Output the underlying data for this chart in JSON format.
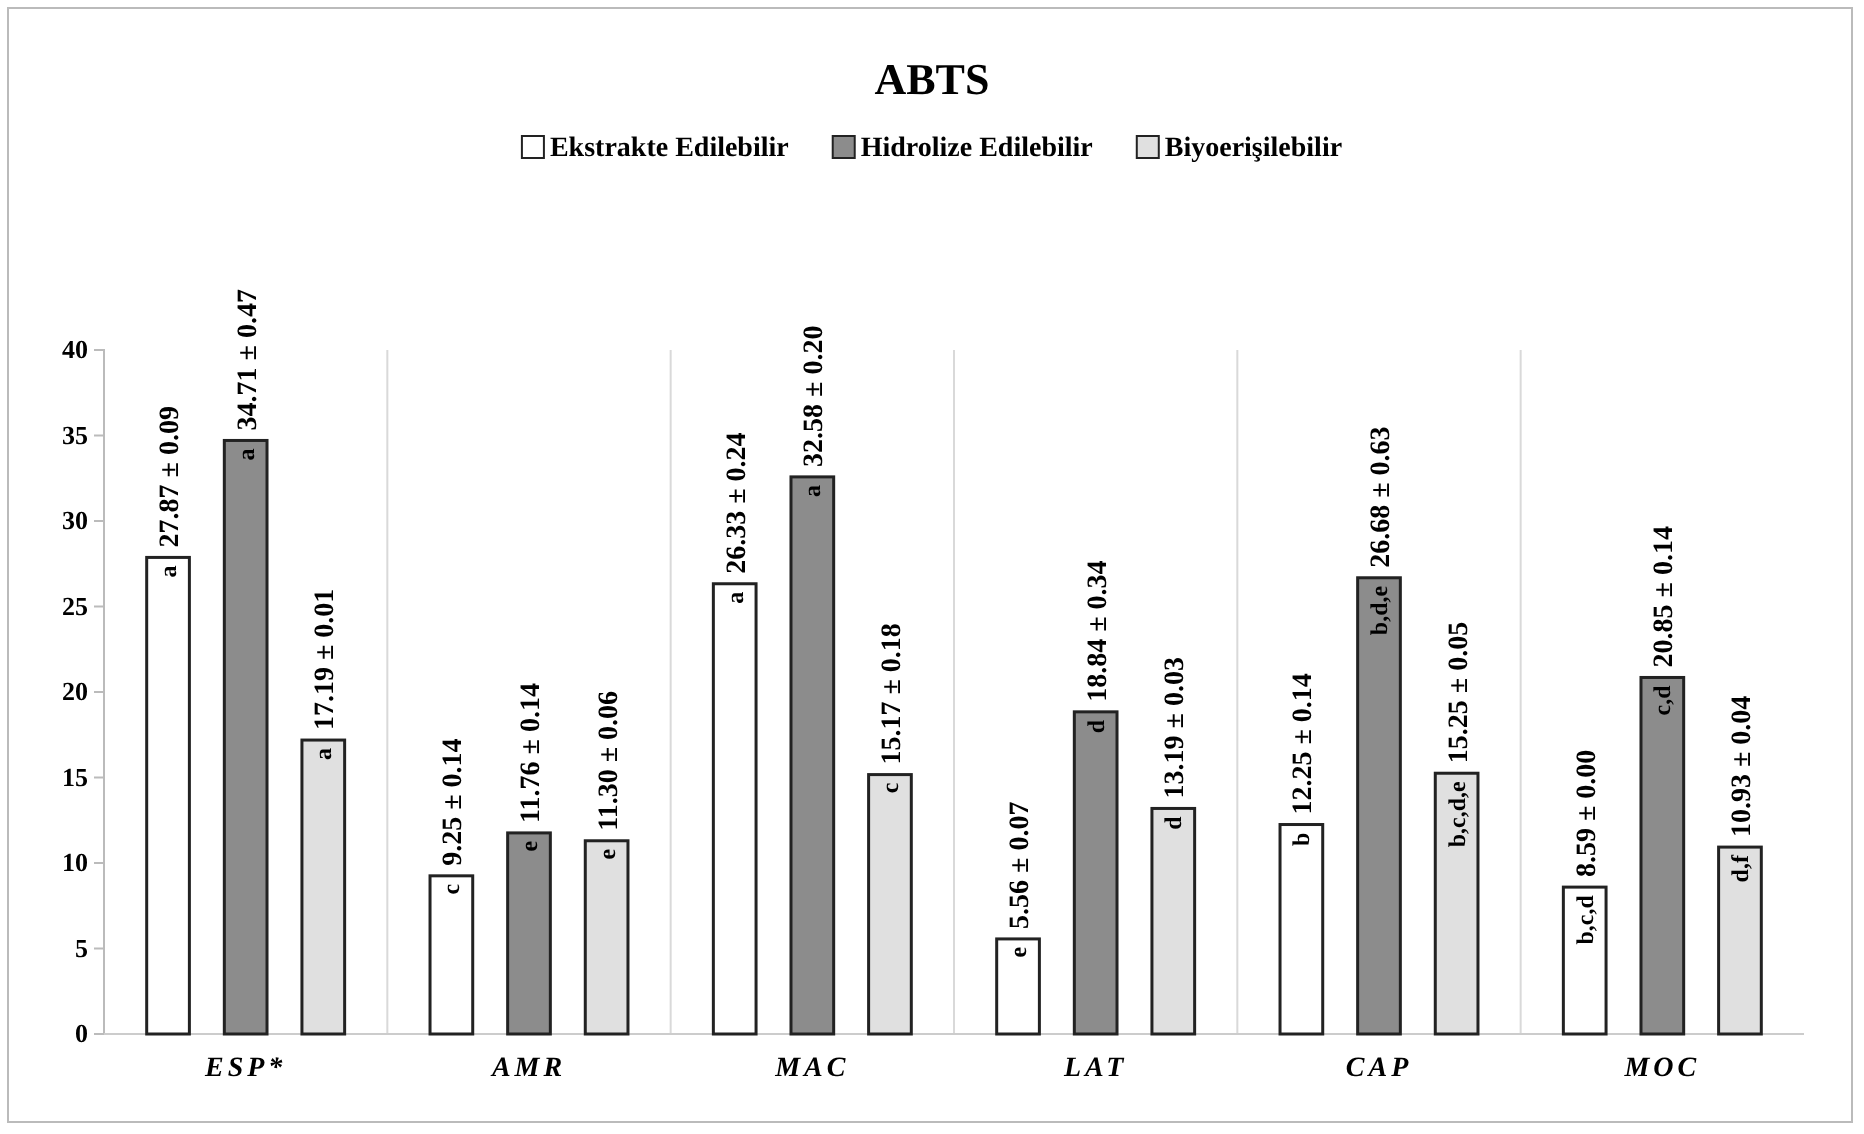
{
  "chart_data": {
    "type": "bar",
    "title": "ABTS",
    "categories": [
      "ESP*",
      "AMR",
      "MAC",
      "LAT",
      "CAP",
      "MOC"
    ],
    "series": [
      {
        "name": "Ekstrakte Edilebilir",
        "color": "#ffffff",
        "values": [
          27.87,
          9.25,
          26.33,
          5.56,
          12.25,
          8.59
        ],
        "value_labels": [
          "27.87 ± 0.09",
          "9.25 ± 0.14",
          "26.33 ± 0.24",
          "5.56 ± 0.07",
          "12.25 ± 0.14",
          "8.59 ± 0.00"
        ]
      },
      {
        "name": "Hidrolize Edilebilir",
        "color": "#8c8c8c",
        "values": [
          34.71,
          11.76,
          32.58,
          18.84,
          26.68,
          20.85
        ],
        "value_labels": [
          "34.71 ± 0.47",
          "11.76 ± 0.14",
          "32.58 ± 0.20",
          "18.84 ± 0.34",
          "26.68 ± 0.63",
          "20.85 ± 0.14"
        ]
      },
      {
        "name": "Biyoerişilebilir",
        "color": "#e0e0e0",
        "values": [
          17.19,
          11.3,
          15.17,
          13.19,
          15.25,
          10.93
        ],
        "value_labels": [
          "17.19 ± 0.01",
          "11.30 ± 0.06",
          "15.17 ± 0.18",
          "13.19 ± 0.03",
          "15.25 ± 0.05",
          "10.93 ± 0.04"
        ]
      }
    ],
    "annotations": [
      "a",
      "a",
      "a",
      "c",
      "e",
      "e",
      "a",
      "a",
      "c",
      "e",
      "d",
      "d",
      "b",
      "b,d,e",
      "b,c,d,e",
      "b,c,d",
      "c,d",
      "d,f"
    ],
    "ylim": [
      0,
      40
    ],
    "yticks": [
      0,
      5,
      10,
      15,
      20,
      25,
      30,
      35,
      40
    ],
    "grid": "x",
    "legend": "top"
  }
}
